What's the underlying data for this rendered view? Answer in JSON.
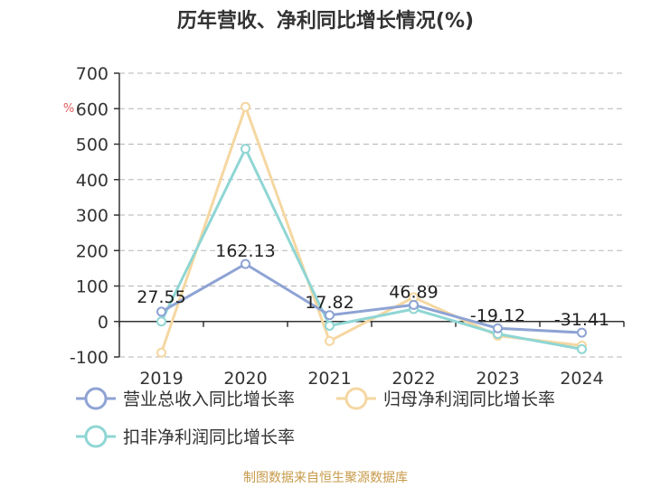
{
  "chart_data": {
    "type": "line",
    "title": "历年营收、净利同比增长情况(%)",
    "unit_label": "%",
    "categories": [
      "2019",
      "2020",
      "2021",
      "2022",
      "2023",
      "2024"
    ],
    "ylim": [
      -100,
      700
    ],
    "yticks": [
      -100,
      0,
      100,
      200,
      300,
      400,
      500,
      600,
      700
    ],
    "grid": true,
    "legend_position": "bottom",
    "series": [
      {
        "name": "营业总收入同比增长率",
        "color": "#8ea3d4",
        "values": [
          27.55,
          162.13,
          17.82,
          46.89,
          -19.12,
          -31.41
        ],
        "labels": [
          "27.55",
          "162.13",
          "17.82",
          "46.89",
          "-19.12",
          "-31.41"
        ]
      },
      {
        "name": "归母净利润同比增长率",
        "color": "#f5d7a1",
        "values": [
          -88,
          605,
          -55,
          68,
          -40,
          -68
        ]
      },
      {
        "name": "扣非净利润同比增长率",
        "color": "#8fd6d4",
        "values": [
          0,
          487,
          -12,
          35,
          -35,
          -78
        ]
      }
    ],
    "source": "制图数据来自恒生聚源数据库"
  }
}
